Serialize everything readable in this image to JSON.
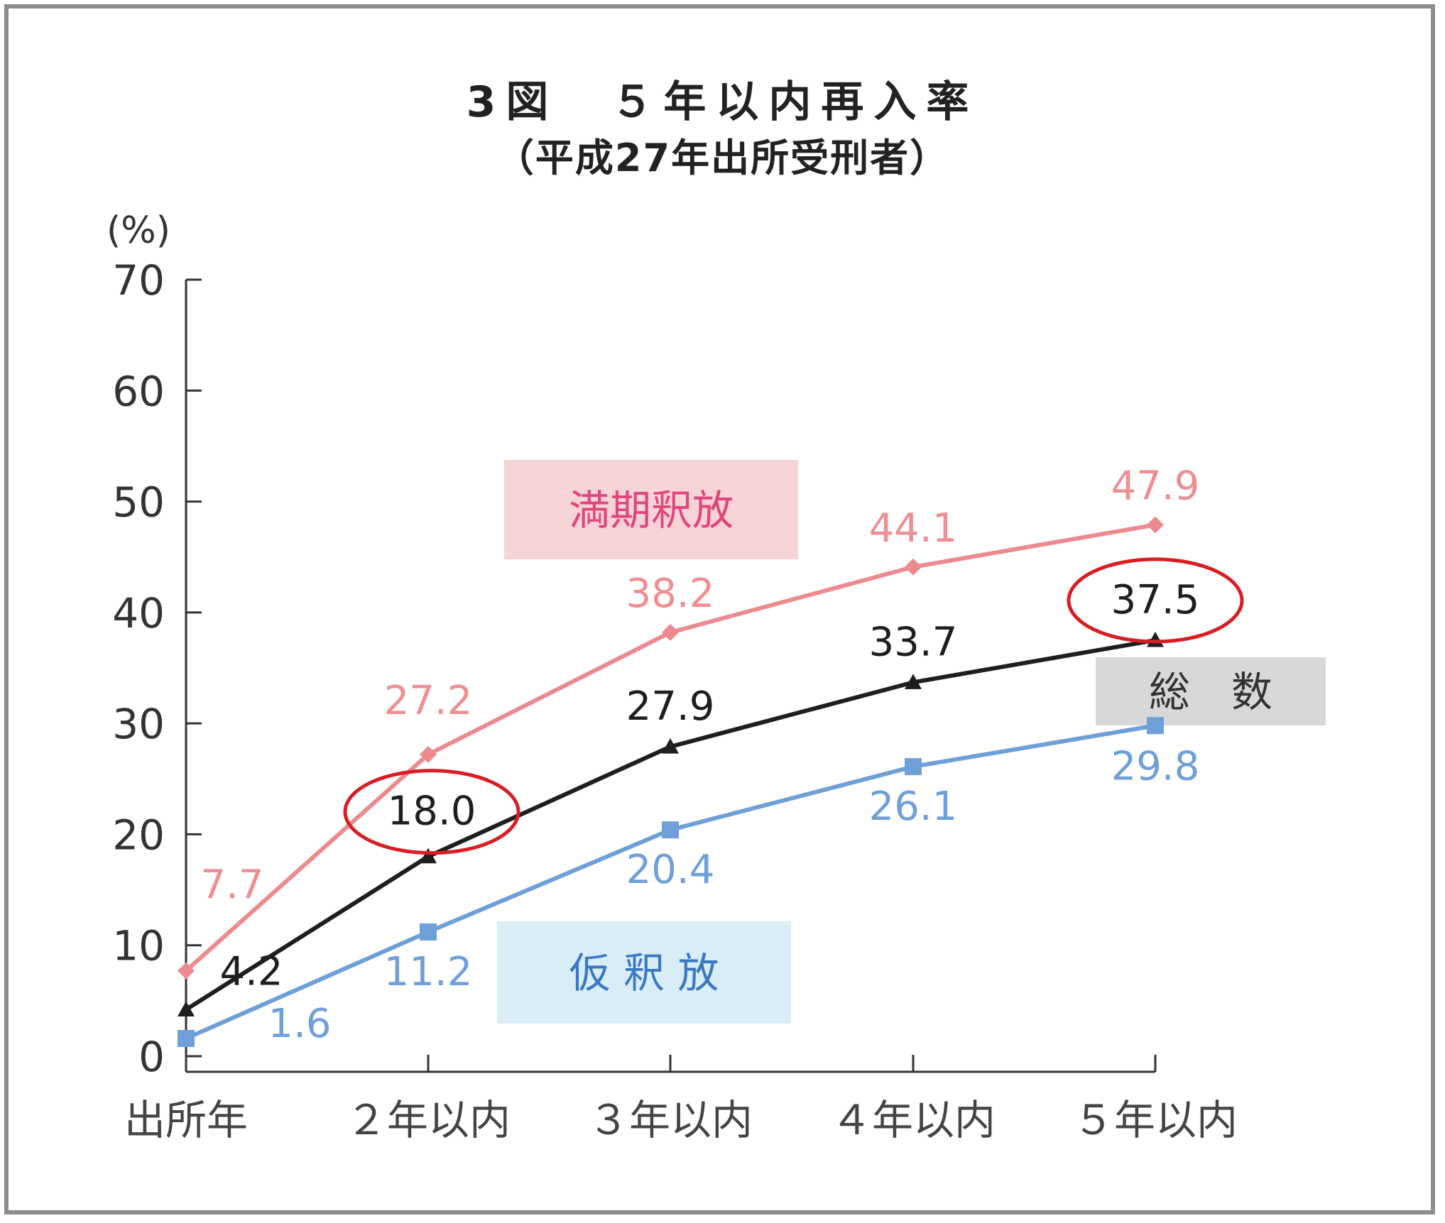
{
  "chart_data": {
    "type": "line",
    "title": "3図　５年以内再入率",
    "subtitle": "（平成27年出所受刑者）",
    "ylabel": "(%)",
    "xlabel": "",
    "ylim": [
      0,
      70
    ],
    "yticks": [
      0,
      10,
      20,
      30,
      40,
      50,
      60,
      70
    ],
    "grid": false,
    "categories": [
      "出所年",
      "２年以内",
      "３年以内",
      "４年以内",
      "５年以内"
    ],
    "series": [
      {
        "name": "満期釈放",
        "values": [
          7.7,
          27.2,
          38.2,
          44.1,
          47.9
        ],
        "labels": [
          "7.7",
          "27.2",
          "38.2",
          "44.1",
          "47.9"
        ],
        "color": "#ec8a8f",
        "label_color": "#ee8f92",
        "legend_bg": "#f6d3d5",
        "legend_text_color": "#e0457c",
        "marker": "diamond"
      },
      {
        "name": "総　数",
        "values": [
          4.2,
          18.0,
          27.9,
          33.7,
          37.5
        ],
        "labels": [
          "4.2",
          "18.0",
          "27.9",
          "33.7",
          "37.5"
        ],
        "color": "#1e1e1e",
        "label_color": "#1e1e1e",
        "legend_bg": "#d8d8d8",
        "legend_text_color": "#333333",
        "marker": "triangle"
      },
      {
        "name": "仮 釈 放",
        "values": [
          1.6,
          11.2,
          20.4,
          26.1,
          29.8
        ],
        "labels": [
          "1.6",
          "11.2",
          "20.4",
          "26.1",
          "29.8"
        ],
        "color": "#6f9fd8",
        "label_color": "#6f9fd8",
        "legend_bg": "#d9edf7",
        "legend_text_color": "#3b78c4",
        "marker": "square"
      }
    ],
    "annotations": [
      {
        "type": "circle",
        "series": "総　数",
        "index": 1,
        "color": "#d81e24"
      },
      {
        "type": "circle",
        "series": "総　数",
        "index": 4,
        "color": "#d81e24"
      }
    ]
  }
}
